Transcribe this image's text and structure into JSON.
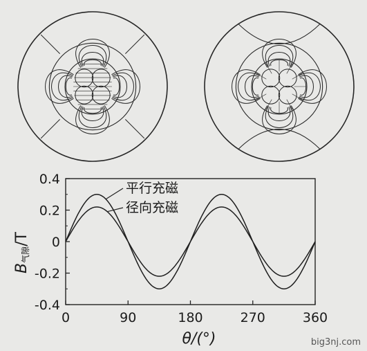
{
  "figure": {
    "top_panels": [
      {
        "name": "parallel-magnetization-field-plot"
      },
      {
        "name": "radial-magnetization-field-plot"
      }
    ],
    "watermark": "big3nj.com"
  },
  "chart_data": {
    "type": "line",
    "title": "",
    "xlabel": "θ/(°)",
    "ylabel": "B气隙/T",
    "ylabel_main": "B",
    "ylabel_sub": "气隙",
    "ylabel_unit": "/T",
    "xlim": [
      0,
      360
    ],
    "ylim": [
      -0.4,
      0.4
    ],
    "xticks": [
      0,
      90,
      180,
      270,
      360
    ],
    "yticks": [
      0.4,
      0.2,
      0,
      -0.2,
      -0.4
    ],
    "ytick_labels": [
      "0.4",
      "0.2",
      "0",
      "-0.2",
      "-0.4"
    ],
    "grid": false,
    "series": [
      {
        "name": "平行充磁",
        "x": [
          0,
          15,
          30,
          45,
          60,
          75,
          90,
          105,
          120,
          135,
          150,
          165,
          180,
          195,
          210,
          225,
          240,
          255,
          270,
          285,
          300,
          315,
          330,
          345,
          360
        ],
        "values": [
          0,
          0.18,
          0.27,
          0.3,
          0.27,
          0.18,
          0,
          -0.18,
          -0.27,
          -0.3,
          -0.27,
          -0.18,
          0,
          0.18,
          0.27,
          0.3,
          0.27,
          0.18,
          0,
          -0.18,
          -0.27,
          -0.3,
          -0.27,
          -0.18,
          0
        ]
      },
      {
        "name": "径向充磁",
        "x": [
          0,
          15,
          30,
          45,
          60,
          75,
          90,
          105,
          120,
          135,
          150,
          165,
          180,
          195,
          210,
          225,
          240,
          255,
          270,
          285,
          300,
          315,
          330,
          345,
          360
        ],
        "values": [
          0,
          0.13,
          0.2,
          0.22,
          0.2,
          0.13,
          0,
          -0.13,
          -0.2,
          -0.22,
          -0.2,
          -0.13,
          0,
          0.13,
          0.2,
          0.22,
          0.2,
          0.13,
          0,
          -0.13,
          -0.2,
          -0.22,
          -0.2,
          -0.13,
          0
        ]
      }
    ],
    "legend": {
      "placement": "top-center",
      "style": "leader-lines"
    }
  }
}
